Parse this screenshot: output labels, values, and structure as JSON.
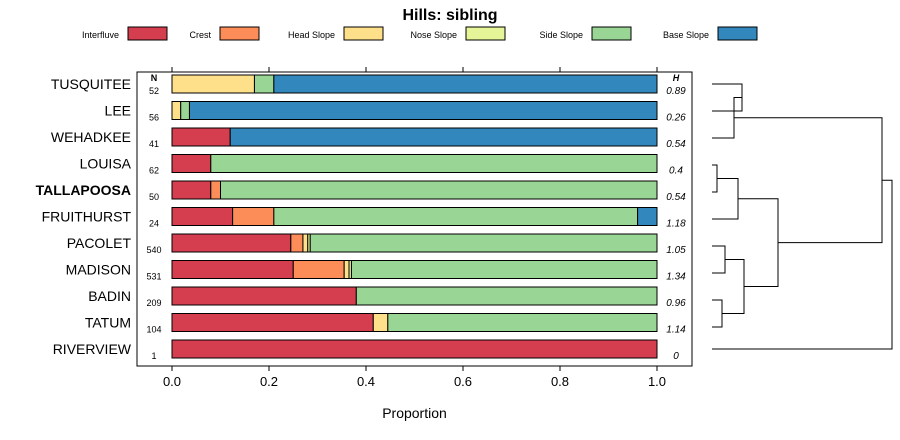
{
  "chart_data": {
    "type": "bar",
    "orientation": "horizontal",
    "stacked": true,
    "title": "Hills: sibling",
    "xlabel": "Proportion",
    "ylabel": "",
    "xlim": [
      0,
      1
    ],
    "x_ticks": [
      "0.0",
      "0.2",
      "0.4",
      "0.6",
      "0.8",
      "1.0"
    ],
    "x_tick_values": [
      0,
      0.2,
      0.4,
      0.6,
      0.8,
      1.0
    ],
    "n_header": "N",
    "h_header": "H",
    "legend": [
      "Interfluve",
      "Crest",
      "Head Slope",
      "Nose Slope",
      "Side Slope",
      "Base Slope"
    ],
    "colors": [
      "#d53e4f",
      "#fc8d59",
      "#fee08b",
      "#e6f598",
      "#99d594",
      "#3288bd"
    ],
    "highlight": "TALLAPOOSA",
    "categories": [
      "TUSQUITEE",
      "LEE",
      "WEHADKEE",
      "LOUISA",
      "TALLAPOOSA",
      "FRUITHURST",
      "PACOLET",
      "MADISON",
      "BADIN",
      "TATUM",
      "RIVERVIEW"
    ],
    "n": [
      "52",
      "56",
      "41",
      "62",
      "50",
      "24",
      "540",
      "531",
      "209",
      "104",
      "1"
    ],
    "h": [
      "0.89",
      "0.26",
      "0.54",
      "0.4",
      "0.54",
      "1.18",
      "1.05",
      "1.34",
      "0.96",
      "1.14",
      "0"
    ],
    "series": [
      {
        "name": "Interfluve",
        "values": [
          0,
          0,
          0.12,
          0.08,
          0.08,
          0.125,
          0.245,
          0.25,
          0.38,
          0.415,
          1.0
        ]
      },
      {
        "name": "Crest",
        "values": [
          0,
          0,
          0,
          0,
          0.02,
          0.085,
          0.025,
          0.105,
          0,
          0,
          0
        ]
      },
      {
        "name": "Head Slope",
        "values": [
          0.17,
          0.018,
          0,
          0,
          0,
          0,
          0.01,
          0.01,
          0,
          0.03,
          0
        ]
      },
      {
        "name": "Nose Slope",
        "values": [
          0,
          0,
          0,
          0,
          0,
          0,
          0.005,
          0.005,
          0,
          0,
          0
        ]
      },
      {
        "name": "Side Slope",
        "values": [
          0.04,
          0.018,
          0,
          0.92,
          0.9,
          0.75,
          0.715,
          0.63,
          0.62,
          0.555,
          0
        ]
      },
      {
        "name": "Base Slope",
        "values": [
          0.79,
          0.964,
          0.88,
          0,
          0,
          0.04,
          0,
          0,
          0,
          0,
          0
        ]
      }
    ],
    "dendrogram": "hierarchical clustering of the 11 series by proportions, shown at right"
  }
}
